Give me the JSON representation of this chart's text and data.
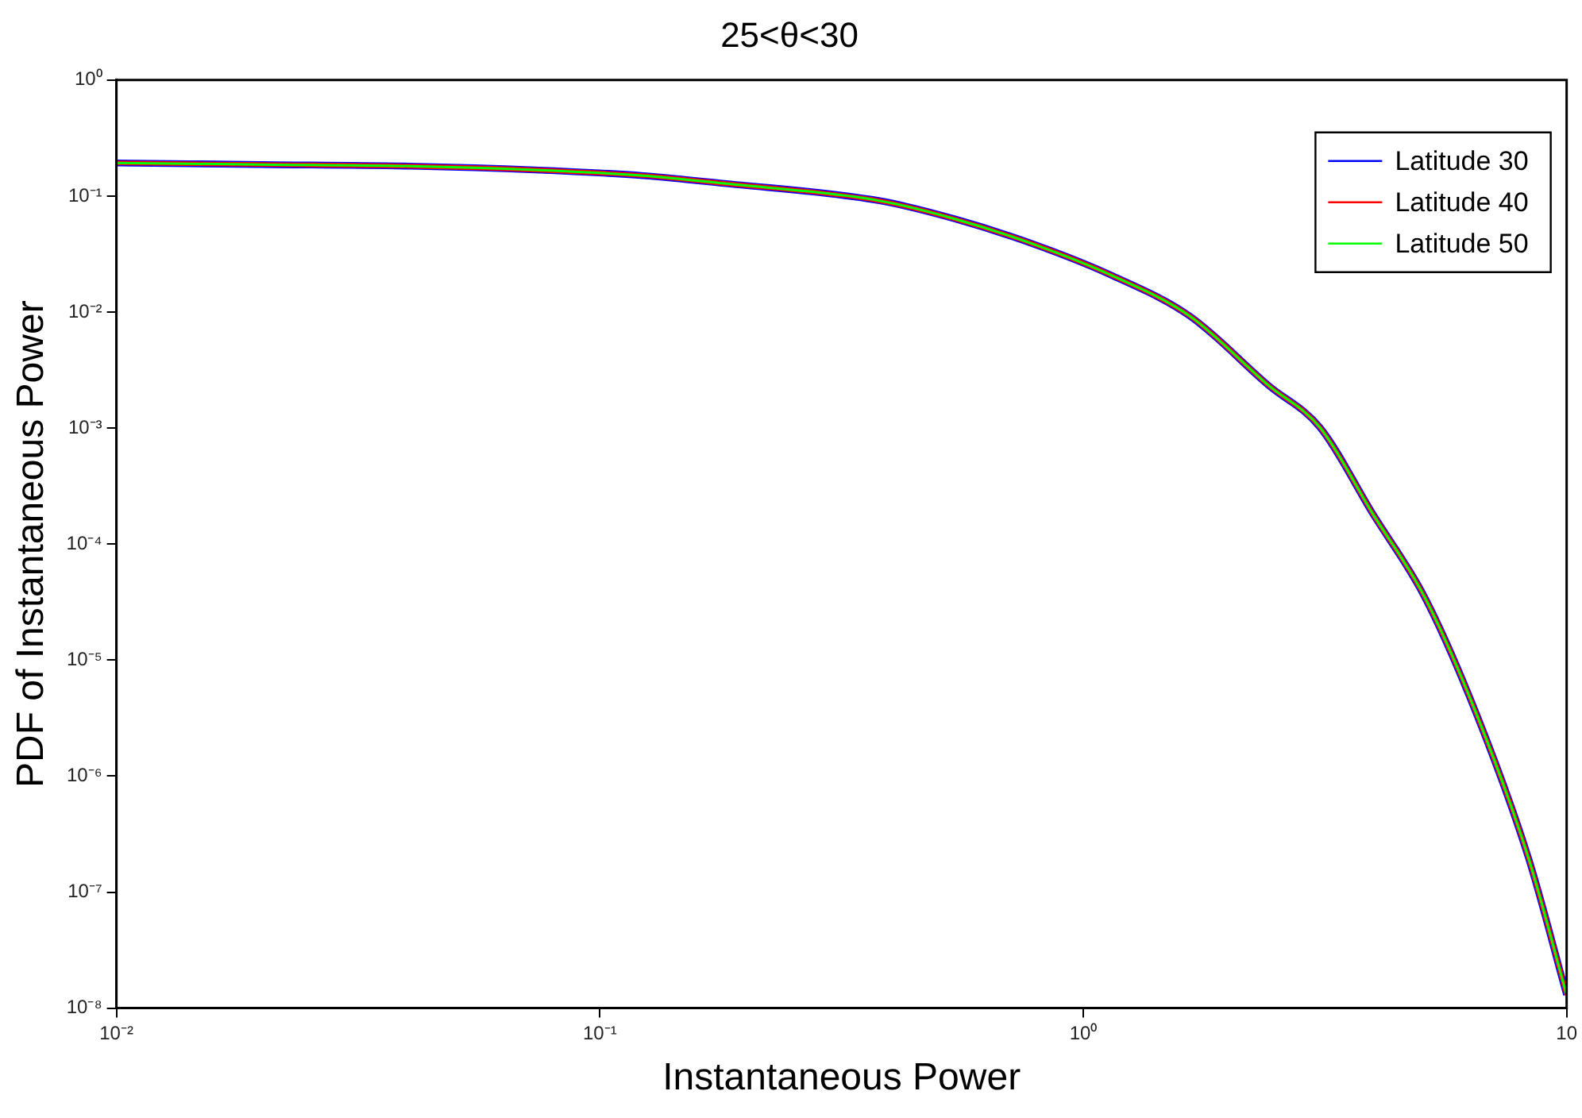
{
  "chart_data": {
    "type": "line",
    "title": "25<θ<30",
    "xlabel": "Instantaneous Power",
    "ylabel": "PDF of Instantaneous Power",
    "x": [
      0.01,
      0.0199,
      0.0405,
      0.0733,
      0.123,
      0.179,
      0.377,
      0.546,
      0.792,
      1.148,
      1.665,
      2.415,
      3.09,
      3.97,
      5.08,
      6.51,
      8.34,
      10
    ],
    "series": [
      {
        "name": "Latitude 30",
        "color": "#0000ff",
        "values": [
          0.193,
          0.187,
          0.181,
          0.168,
          0.15,
          0.129,
          0.0914,
          0.063,
          0.0383,
          0.0206,
          0.00917,
          0.00234,
          0.00101,
          0.000183,
          3.52e-05,
          3.42e-06,
          1.96e-07,
          1.3e-08
        ]
      },
      {
        "name": "Latitude 40",
        "color": "#ff0000",
        "values": [
          0.193,
          0.187,
          0.181,
          0.168,
          0.15,
          0.129,
          0.0914,
          0.063,
          0.0383,
          0.0206,
          0.00917,
          0.00234,
          0.00101,
          0.000183,
          3.52e-05,
          3.42e-06,
          1.96e-07,
          1.3e-08
        ]
      },
      {
        "name": "Latitude 50",
        "color": "#00ff00",
        "values": [
          0.193,
          0.187,
          0.181,
          0.168,
          0.15,
          0.129,
          0.0914,
          0.063,
          0.0383,
          0.0206,
          0.00917,
          0.00234,
          0.00101,
          0.000183,
          3.52e-05,
          3.42e-06,
          1.96e-07,
          1.3e-08
        ]
      }
    ],
    "log": "xy",
    "xlim": [
      0.01,
      10
    ],
    "ylim": [
      1e-08,
      1
    ],
    "xticks": [
      {
        "value": 0.01,
        "label": "10⁻²"
      },
      {
        "value": 0.1,
        "label": "10⁻¹"
      },
      {
        "value": 1,
        "label": "10⁰"
      },
      {
        "value": 10,
        "label": "10"
      }
    ],
    "yticks": [
      {
        "value": 1e-08,
        "label": "10⁻⁸"
      },
      {
        "value": 1e-07,
        "label": "10⁻⁷"
      },
      {
        "value": 1e-06,
        "label": "10⁻⁶"
      },
      {
        "value": 1e-05,
        "label": "10⁻⁵"
      },
      {
        "value": 0.0001,
        "label": "10⁻⁴"
      },
      {
        "value": 0.001,
        "label": "10⁻³"
      },
      {
        "value": 0.01,
        "label": "10⁻²"
      },
      {
        "value": 0.1,
        "label": "10⁻¹"
      },
      {
        "value": 1,
        "label": "10⁰"
      }
    ],
    "grid": false,
    "legend": "top right",
    "marker": "none",
    "line_style": "solid"
  }
}
